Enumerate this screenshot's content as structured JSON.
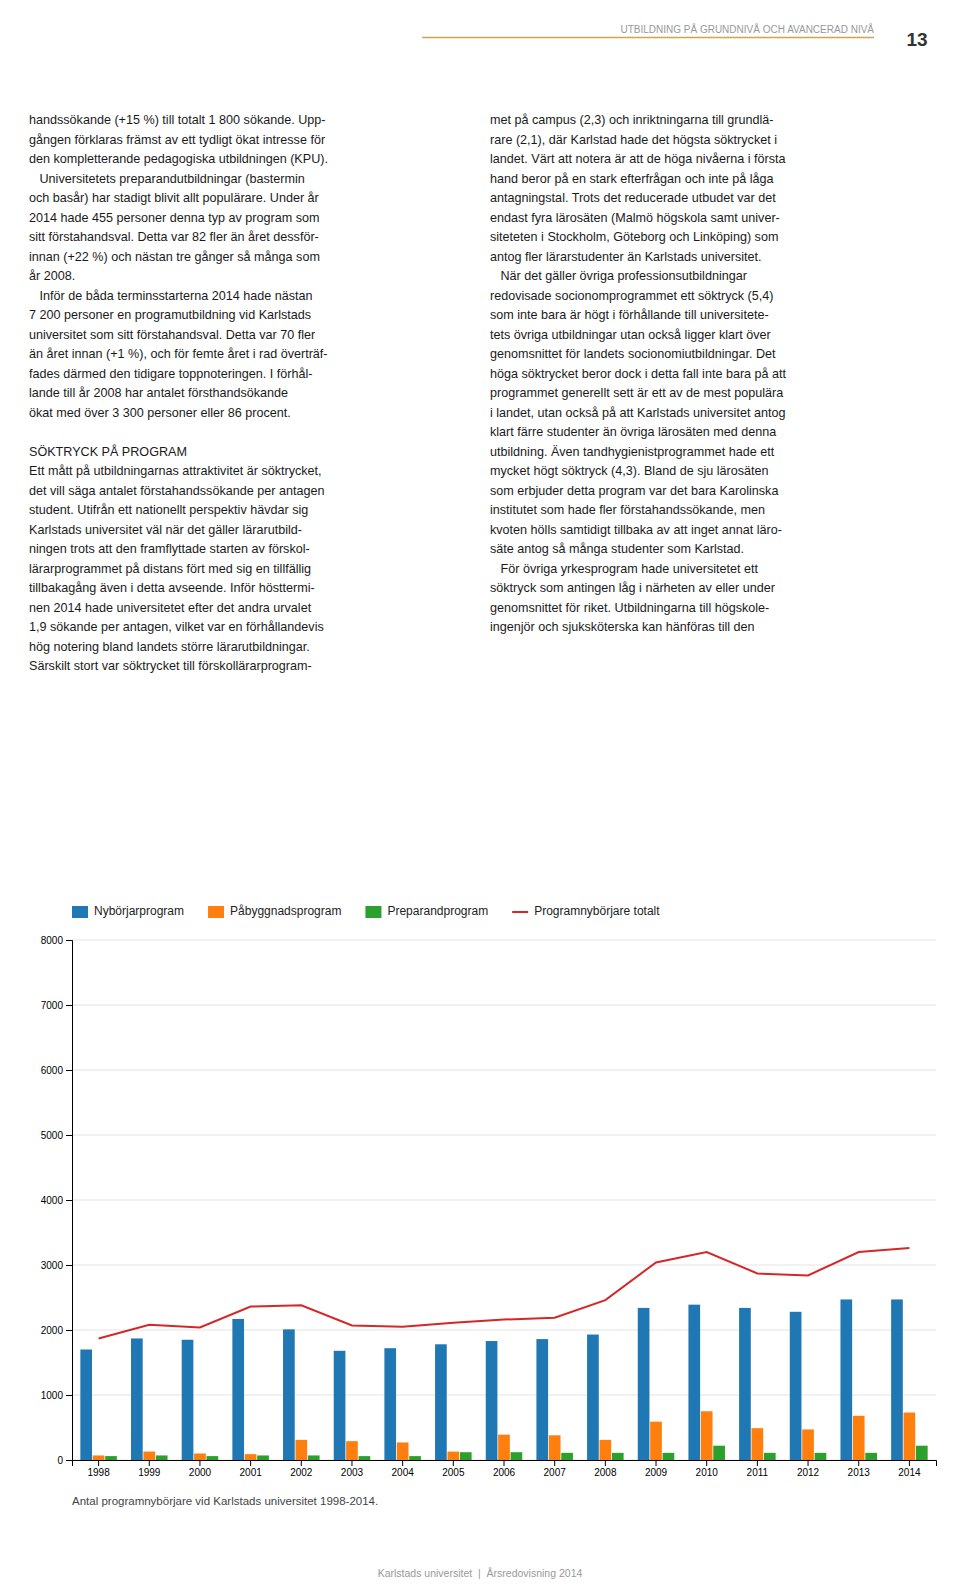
{
  "page": {
    "header_title": "UTBILDNING PÅ GRUNDNIVÅ OCH AVANCERAD NIVÅ",
    "page_number": "13",
    "body_left": "handssökande (+15 %) till totalt 1 800 sökande. Upp-\ngången förklaras främst av ett tydligt ökat intresse för\nden kompletterande pedagogiska utbildningen (KPU).\n   Universitetets preparandutbildningar (bastermin\noch basår) har stadigt blivit allt populärare. Under år\n2014 hade 455 personer denna typ av program som\nsitt förstahandsval. Detta var 82 fler än året dessför-\ninnan (+22 %) och nästan tre gånger så många som\når 2008.\n   Inför de båda terminsstarterna 2014 hade nästan\n7 200 personer en programutbildning vid Karlstads\nuniversitet som sitt förstahandsval. Detta var 70 fler\nän året innan (+1 %), och för femte året i rad överträf-\nfades därmed den tidigare toppnoteringen. I förhål-\nlande till år 2008 har antalet försthandsökande\nökat med över 3 300 personer eller 86 procent.\n\nSÖKTRYCK PÅ PROGRAM\nEtt mått på utbildningarnas attraktivitet är söktrycket,\ndet vill säga antalet förstahandssökande per antagen\nstudent. Utifrån ett nationellt perspektiv hävdar sig\nKarlstads universitet väl när det gäller lärarutbild-\nningen trots att den framflyttade starten av förskol-\nlärarprogrammet på distans fört med sig en tillfällig\ntillbakagång även i detta avseende. Inför hösttermi-\nnen 2014 hade universitetet efter det andra urvalet\n1,9 sökande per antagen, vilket var en förhållandevis\nhög notering bland landets större lärarutbildningar.\nSärskilt stort var söktrycket till förskollärarprogram-",
    "body_right": "met på campus (2,3) och inriktningarna till grundlä-\nrare (2,1), där Karlstad hade det högsta söktrycket i\nlandet. Värt att notera är att de höga nivåerna i första\nhand beror på en stark efterfrågan och inte på låga\nantagningstal. Trots det reducerade utbudet var det\nendast fyra lärosäten (Malmö högskola samt univer-\nsiteteten i Stockholm, Göteborg och Linköping) som\nantog fler lärarstudenter än Karlstads universitet.\n   När det gäller övriga professionsutbildningar\nredovisade socionomprogrammet ett söktryck (5,4)\nsom inte bara är högt i förhållande till universitete-\ntets övriga utbildningar utan också ligger klart över\ngenomsnittet för landets socionomiutbildningar. Det\nhöga söktrycket beror dock i detta fall inte bara på att\nprogrammet generellt sett är ett av de mest populära\ni landet, utan också på att Karlstads universitet antog\nklart färre studenter än övriga lärosäten med denna\nutbildning. Även tandhygienistprogrammet hade ett\nmycket högt söktryck (4,3). Bland de sju lärosäten\nsom erbjuder detta program var det bara Karolinska\ninstitutet som hade fler förstahandssökande, men\nkvoten hölls samtidigt tillbaka av att inget annat läro-\nsäte antog så många studenter som Karlstad.\n   För övriga yrkesprogram hade universitetet ett\nsöktryck som antingen låg i närheten av eller under\ngenomsnittet för riket. Utbildningarna till högskole-\ningenjör och sjuksköterska kan hänföras till den",
    "footer": "Karlstads universitet  |  Årsredovisning 2014"
  },
  "chart_data": {
    "type": "bar",
    "title": "Antal programnybörjare vid Karlstads universitet 1998-2014.",
    "categories": [
      "1998",
      "1999",
      "2000",
      "2001",
      "2002",
      "2003",
      "2004",
      "2005",
      "2006",
      "2007",
      "2008",
      "2009",
      "2010",
      "2011",
      "2012",
      "2013",
      "2014"
    ],
    "series": [
      {
        "name": "Nybörjarprogram",
        "type": "bar",
        "values": [
          1700,
          1870,
          1850,
          2170,
          2010,
          1680,
          1720,
          1780,
          1830,
          1860,
          1930,
          2340,
          2390,
          2340,
          2280,
          2470,
          2470
        ]
      },
      {
        "name": "Påbyggnadsprogram",
        "type": "bar",
        "values": [
          70,
          130,
          100,
          90,
          310,
          290,
          270,
          130,
          390,
          380,
          310,
          590,
          750,
          490,
          470,
          680,
          730
        ]
      },
      {
        "name": "Preparandprogram",
        "type": "bar",
        "values": [
          60,
          70,
          60,
          70,
          70,
          60,
          60,
          120,
          120,
          110,
          110,
          110,
          220,
          110,
          110,
          110,
          220
        ]
      },
      {
        "name": "Programnybörjare totalt",
        "type": "line",
        "values": [
          1870,
          2080,
          2040,
          2360,
          2380,
          2070,
          2050,
          2110,
          2160,
          2190,
          2460,
          3040,
          3200,
          2870,
          2840,
          3200,
          3260
        ]
      }
    ],
    "ylim": [
      0,
      8000
    ],
    "yticks": [
      0,
      1000,
      2000,
      3000,
      4000,
      5000,
      6000,
      7000,
      8000
    ],
    "grid": true,
    "legend": "top-left"
  }
}
